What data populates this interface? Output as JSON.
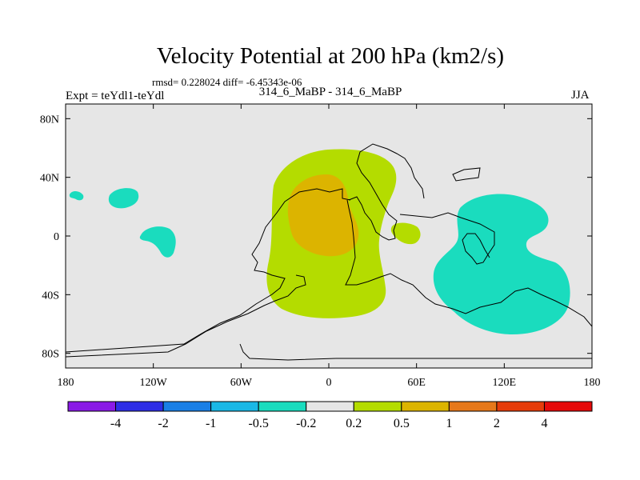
{
  "title": "Velocity Potential at 200 hPa (km2/s)",
  "stats_line": "rmsd= 0.228024 diff= -6.45343e-06",
  "experiment_line": "Expt = teYdl1-teYdl",
  "comparison_line": "314_6_MaBP - 314_6_MaBP",
  "season": "JJA",
  "chart_data": {
    "type": "heatmap",
    "title": "Velocity Potential at 200 hPa (km2/s)",
    "xlabel": "",
    "ylabel": "",
    "xlim": [
      -180,
      180
    ],
    "ylim": [
      -90,
      90
    ],
    "x_ticks": [
      {
        "value": -180,
        "label": "180"
      },
      {
        "value": -120,
        "label": "120W"
      },
      {
        "value": -60,
        "label": "60W"
      },
      {
        "value": 0,
        "label": "0"
      },
      {
        "value": 60,
        "label": "60E"
      },
      {
        "value": 120,
        "label": "120E"
      },
      {
        "value": 180,
        "label": "180"
      }
    ],
    "y_ticks": [
      {
        "value": 80,
        "label": "80N"
      },
      {
        "value": 40,
        "label": "40N"
      },
      {
        "value": 0,
        "label": "0"
      },
      {
        "value": -40,
        "label": "40S"
      },
      {
        "value": -80,
        "label": "80S"
      }
    ],
    "background_color": "#e6e6e6",
    "colorbar": {
      "labels": [
        "-4",
        "-2",
        "-1",
        "-0.5",
        "-0.2",
        "0.2",
        "0.5",
        "1",
        "2",
        "4"
      ],
      "colors": [
        "#8a1ae6",
        "#2e2ee6",
        "#1a7fe6",
        "#1ab8e6",
        "#1adcbe",
        "#e6e6e6",
        "#b4dc00",
        "#dcb400",
        "#e6781a",
        "#e63c0a",
        "#e60a0a"
      ]
    },
    "regions": [
      {
        "name": "negative-anomaly-east-pacific-small",
        "level": "-0.5 to -0.2",
        "lon_range": [
          -178,
          -168
        ],
        "lat_range": [
          26,
          32
        ]
      },
      {
        "name": "negative-anomaly-central-pacific-north",
        "level": "-0.5 to -0.2",
        "lon_range": [
          -148,
          -130
        ],
        "lat_range": [
          18,
          32
        ]
      },
      {
        "name": "negative-anomaly-central-pacific",
        "level": "-0.5 to -0.2",
        "lon_range": [
          -128,
          -108
        ],
        "lat_range": [
          -16,
          6
        ]
      },
      {
        "name": "positive-anomaly-atlantic-africa",
        "level": "0.2 to 0.5",
        "lon_range": [
          -40,
          30
        ],
        "lat_range": [
          -55,
          60
        ]
      },
      {
        "name": "positive-anomaly-arabia",
        "level": "0.2 to 0.5",
        "lon_range": [
          45,
          62
        ],
        "lat_range": [
          -5,
          8
        ]
      },
      {
        "name": "positive-anomaly-core",
        "level": "0.5 to 1",
        "lon_range": [
          -28,
          10
        ],
        "lat_range": [
          -15,
          45
        ]
      },
      {
        "name": "negative-anomaly-indian-ocean",
        "level": "-0.5 to -0.2",
        "lon_range": [
          70,
          165
        ],
        "lat_range": [
          -68,
          28
        ]
      }
    ]
  }
}
